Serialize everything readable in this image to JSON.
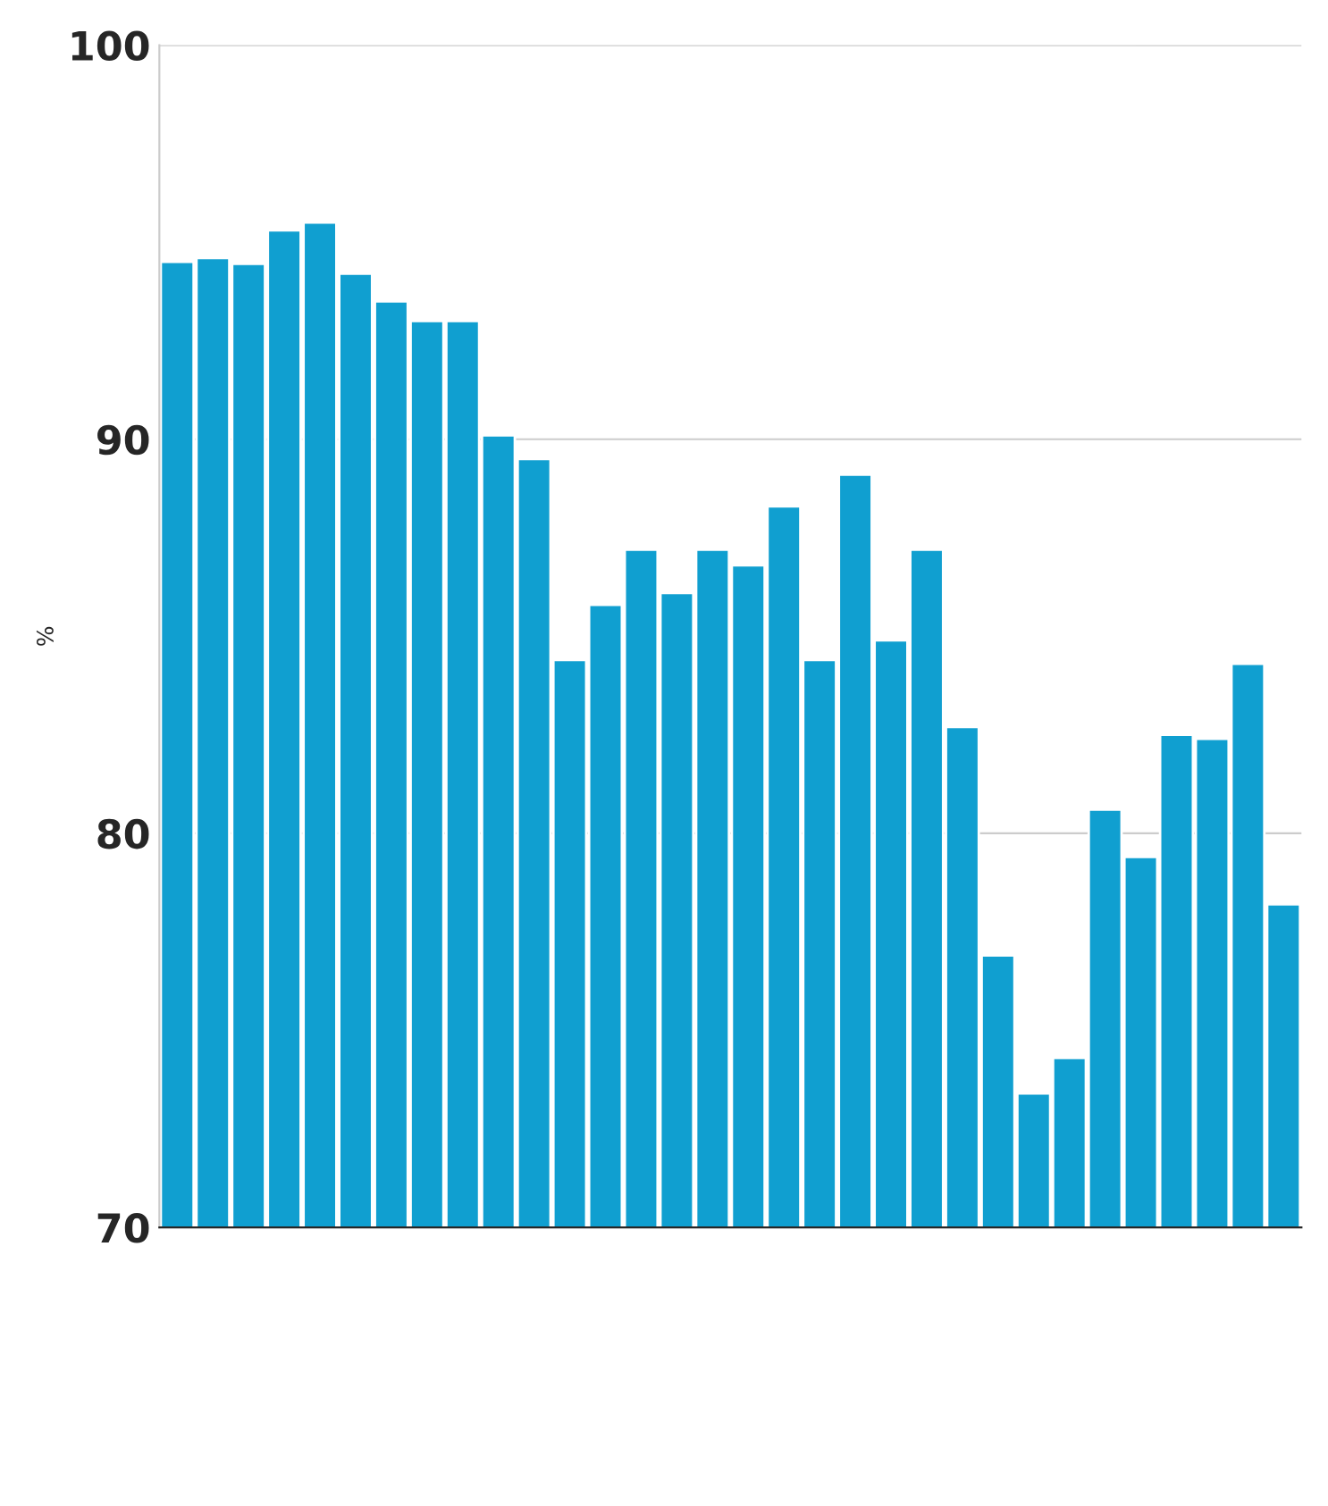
{
  "chart_data": {
    "type": "bar",
    "ylabel": "%",
    "categories": [
      null,
      null,
      null,
      null,
      null,
      null,
      null,
      null,
      null,
      null,
      null,
      null,
      null,
      null,
      null,
      null,
      null,
      null,
      null,
      null,
      null,
      null,
      null,
      null,
      null,
      null,
      null,
      null,
      null,
      null,
      null,
      null
    ],
    "series": [
      {
        "color": "#109fd0",
        "values": [
          94.5,
          94.6,
          94.45,
          95.3,
          95.5,
          94.2,
          93.5,
          93.0,
          93.0,
          90.1,
          89.5,
          84.4,
          85.8,
          87.2,
          86.1,
          87.2,
          86.8,
          88.3,
          84.4,
          89.1,
          84.9,
          87.2,
          82.7,
          76.9,
          73.4,
          74.3,
          80.6,
          79.4,
          82.5,
          82.4,
          84.3,
          78.2
        ]
      }
    ],
    "ylim": [
      70,
      100
    ],
    "yticks": [
      70,
      80,
      90,
      100
    ],
    "grid": "y"
  }
}
